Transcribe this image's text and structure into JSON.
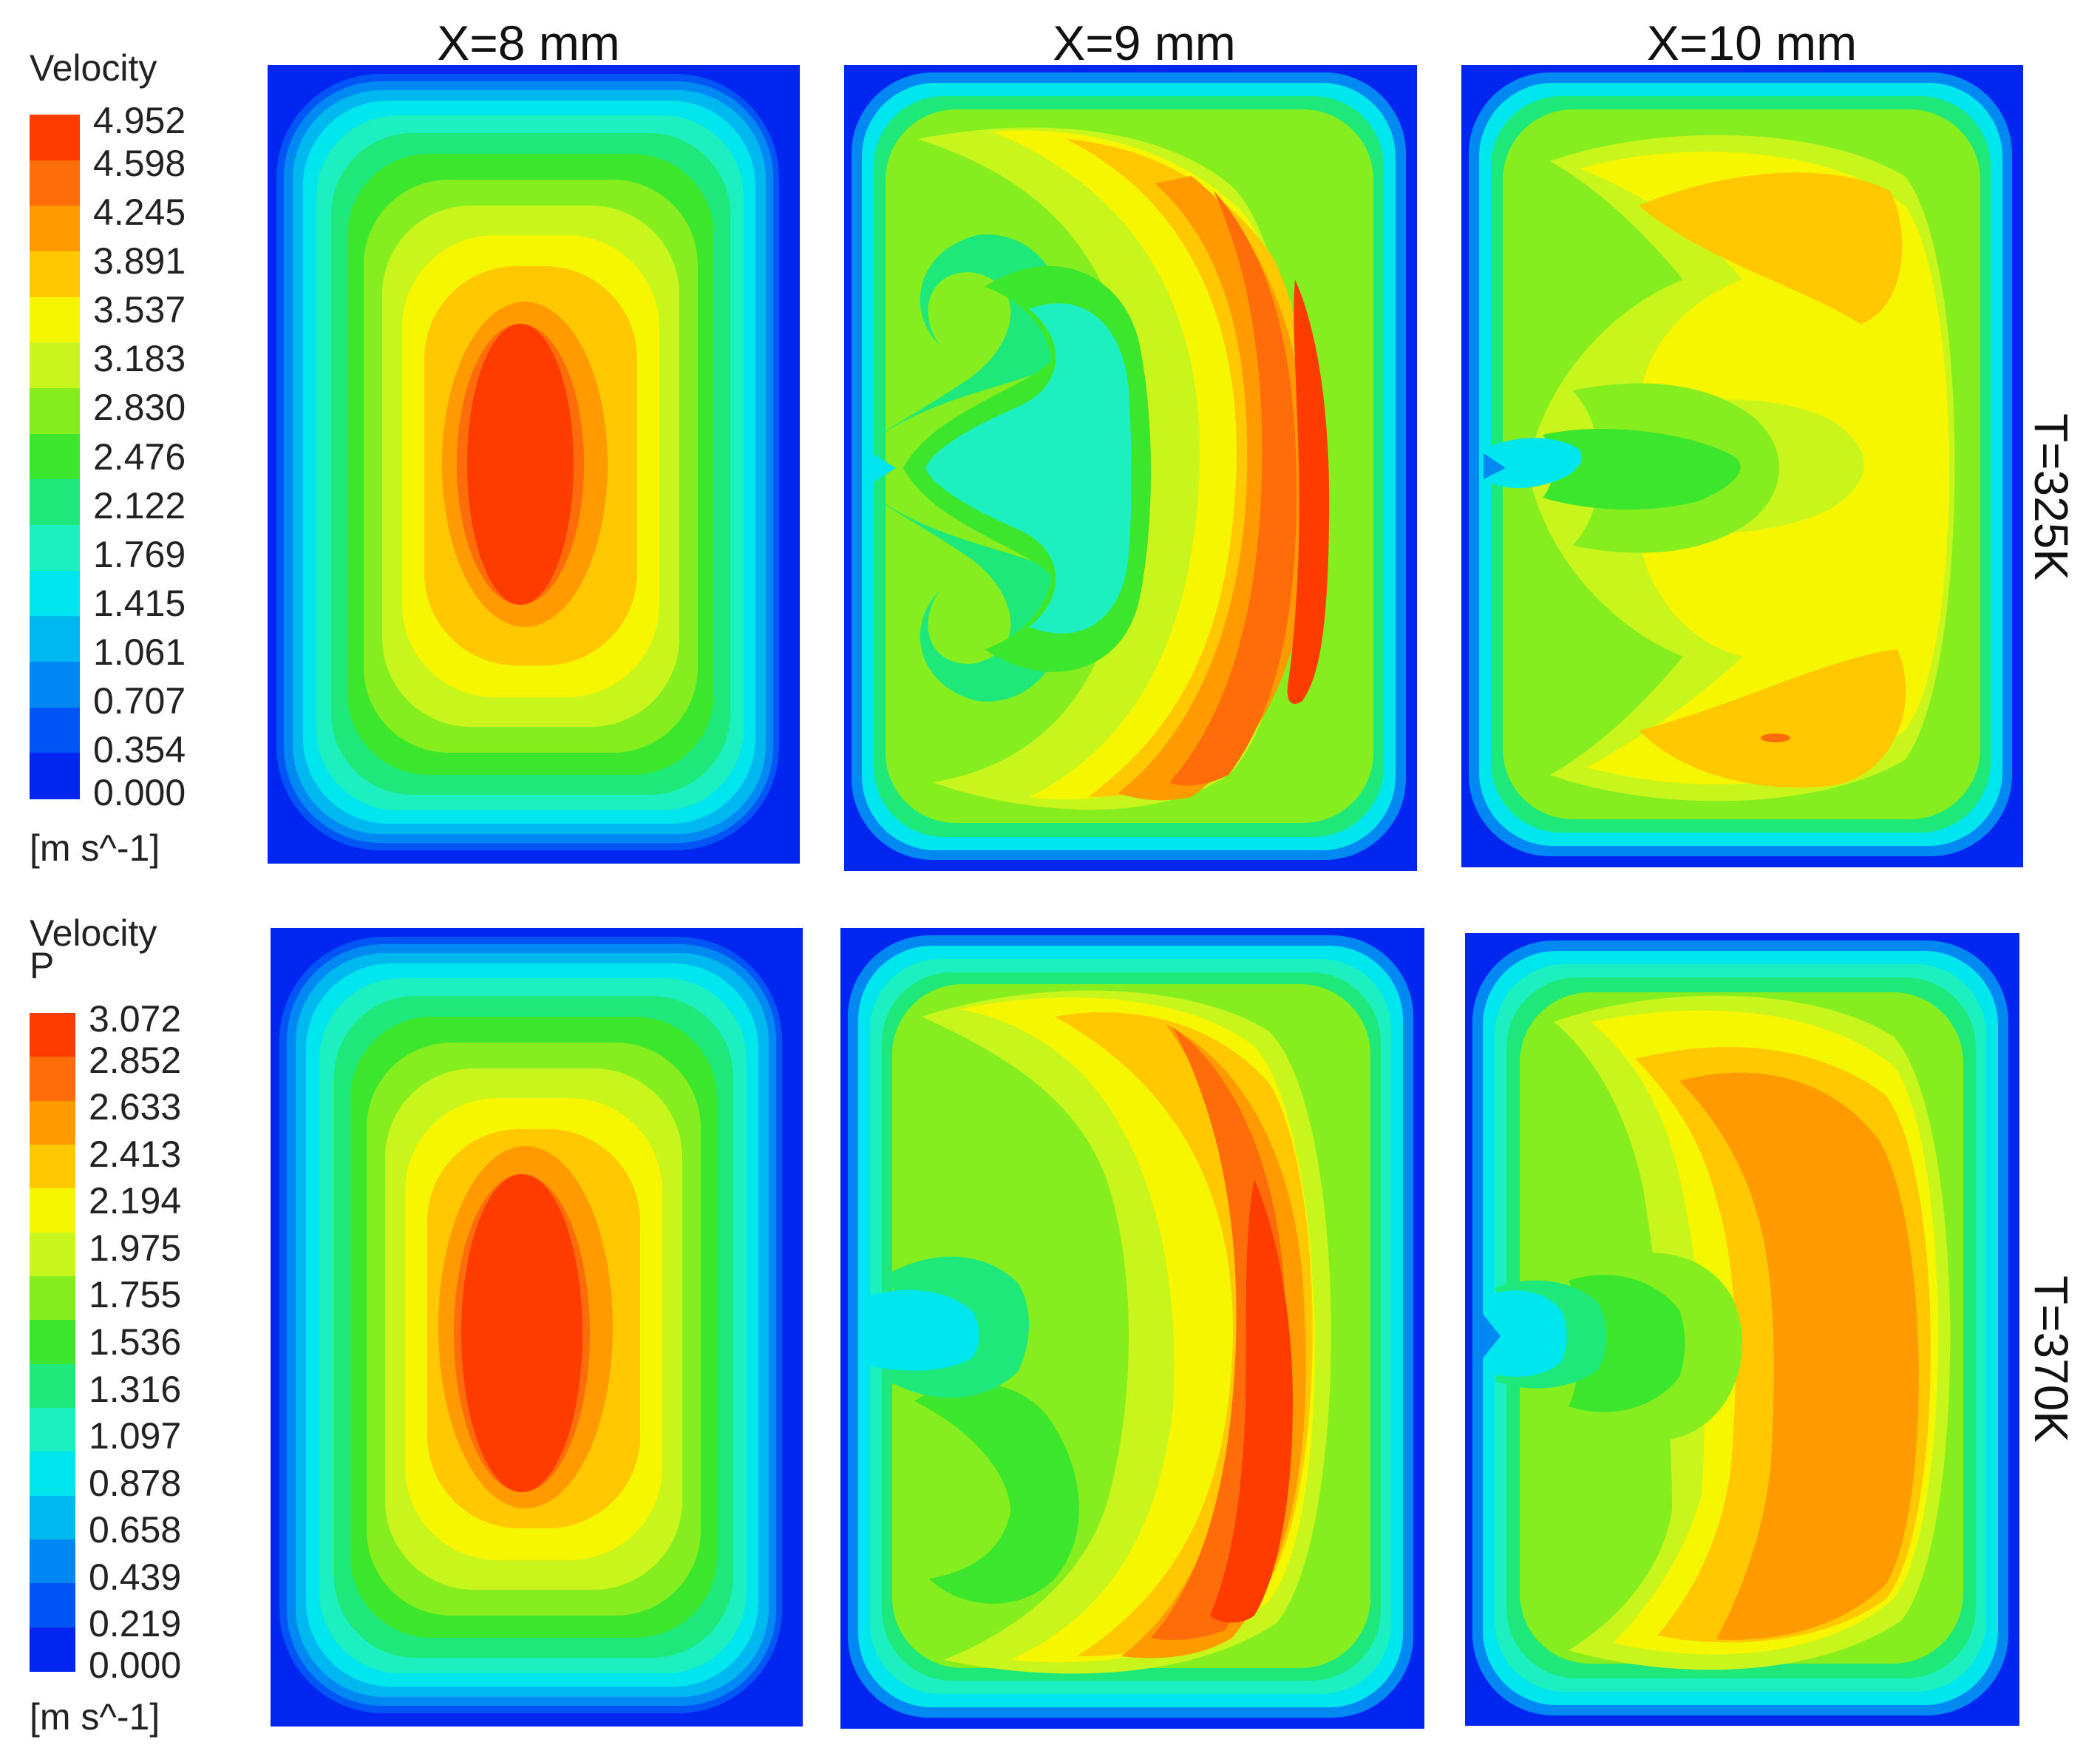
{
  "figure": {
    "column_titles": [
      "X=8 mm",
      "X=9 mm",
      "X=10 mm"
    ],
    "row_labels": [
      "T=325K",
      "T=370K"
    ]
  },
  "colormap": [
    "#0026f0",
    "#0055f5",
    "#0088f3",
    "#00b8f0",
    "#00e6ee",
    "#1cf0c0",
    "#1ee87a",
    "#3ce62c",
    "#86ee1e",
    "#c8f51c",
    "#f6f600",
    "#ffc800",
    "#ff9a00",
    "#ff6c0a",
    "#ff3c00"
  ],
  "legends": [
    {
      "title_lines": [
        "Velocity"
      ],
      "unit": "[m s^-1]",
      "ticks": [
        "4.952",
        "4.598",
        "4.245",
        "3.891",
        "3.537",
        "3.183",
        "2.830",
        "2.476",
        "2.122",
        "1.769",
        "1.415",
        "1.061",
        "0.707",
        "0.354",
        "0.000"
      ]
    },
    {
      "title_lines": [
        "Velocity",
        "P"
      ],
      "unit": "[m s^-1]",
      "ticks": [
        "3.072",
        "2.852",
        "2.633",
        "2.413",
        "2.194",
        "1.975",
        "1.755",
        "1.536",
        "1.316",
        "1.097",
        "0.878",
        "0.658",
        "0.439",
        "0.219",
        "0.000"
      ]
    }
  ]
}
